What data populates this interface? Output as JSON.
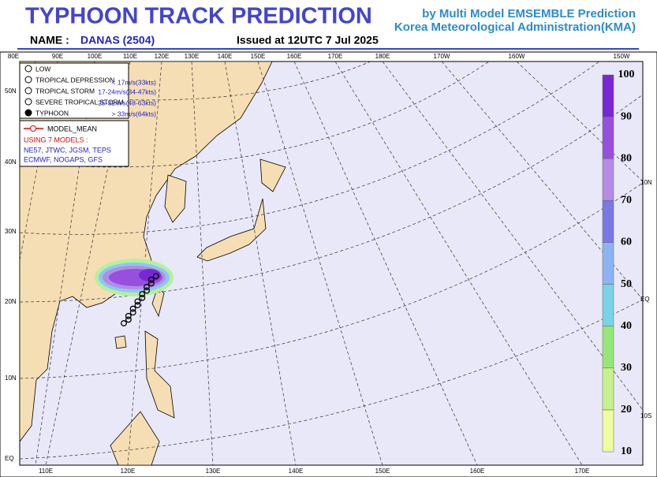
{
  "header": {
    "title": "TYPHOON  TRACK  PREDICTION",
    "subtitle_1": "by Multi Model EMSEMBLE Prediction",
    "subtitle_2": "Korea Meteorological Administration(KMA)",
    "name_label": "NAME :",
    "name": "DANAS (2504)",
    "issued": "Issued at  12UTC  7 Jul 2025"
  },
  "map": {
    "top_lon_labels": [
      "80E",
      "90E",
      "100E",
      "110E",
      "120E",
      "130E",
      "140E",
      "150E",
      "160E",
      "170E",
      "180E",
      "170W",
      "160W",
      "150W"
    ],
    "bottom_lon_labels": [
      "110E",
      "120E",
      "130E",
      "140E",
      "150E",
      "160E",
      "170E"
    ],
    "left_lat_labels": [
      "50N",
      "40N",
      "30N",
      "20N",
      "10N",
      "EQ"
    ],
    "right_lat_labels": [
      "10N",
      "EQ",
      "10S"
    ]
  },
  "legend": {
    "items": [
      {
        "label": "LOW"
      },
      {
        "label": "TROPICAL DEPRESSION",
        "range": "< 17m/s(33kts)"
      },
      {
        "label": "TROPICAL STORM",
        "range": "17-24m/s(34-47kts)"
      },
      {
        "label": "SEVERE TROPICAL STORM",
        "range": "25-32m/s(48-63kts)"
      },
      {
        "label": "TYPHOON",
        "range": "> 33m/s(64kts)"
      }
    ]
  },
  "model_legend": {
    "mean": "MODEL_MEAN",
    "using": "USING 7 MODELS :",
    "models_1": "NE57, JTWC, JGSM, TEPS",
    "models_2": "ECMWF, NOGAPS, GFS"
  },
  "colorbar": {
    "ticks": [
      10,
      20,
      30,
      40,
      50,
      60,
      70,
      80,
      90,
      100
    ],
    "colors": [
      "#f0fca0",
      "#c8f08c",
      "#96e678",
      "#7ad2e6",
      "#8cb4f0",
      "#7878e6",
      "#b48ce6",
      "#9650dc",
      "#7828d2"
    ]
  }
}
